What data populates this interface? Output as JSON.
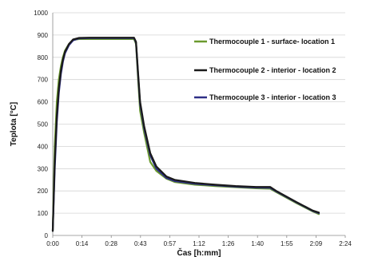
{
  "chart_data": {
    "type": "line",
    "title": "",
    "xlabel": "Čas [h:mm]",
    "ylabel": "Teplota [°C]",
    "ylim": [
      0,
      1000
    ],
    "xlim_minutes": [
      0,
      144
    ],
    "yticks": [
      "0",
      "100",
      "200",
      "300",
      "400",
      "500",
      "600",
      "700",
      "800",
      "900",
      "1000"
    ],
    "xticks": [
      "0:00",
      "0:14",
      "0:28",
      "0:43",
      "0:57",
      "1:12",
      "1:26",
      "1:40",
      "1:55",
      "2:09",
      "2:24"
    ],
    "grid": "horizontal",
    "legend_position": "right",
    "series": [
      {
        "name": "Thermocouple 1 - surface- location 1",
        "color": "#6b9a2e",
        "x_minutes": [
          0,
          1,
          2,
          3,
          4,
          5,
          6,
          8,
          10,
          13,
          18,
          25,
          35,
          40,
          41,
          42,
          43,
          45,
          48,
          51,
          56,
          60,
          70,
          80,
          90,
          100,
          107,
          110,
          120,
          128,
          131
        ],
        "values": [
          20,
          400,
          600,
          700,
          760,
          800,
          830,
          860,
          878,
          882,
          882,
          882,
          882,
          882,
          860,
          700,
          560,
          460,
          330,
          290,
          255,
          240,
          228,
          222,
          217,
          212,
          210,
          195,
          145,
          108,
          96
        ]
      },
      {
        "name": "Thermocouple 2 - interior - location 2",
        "color": "#1a1a1a",
        "x_minutes": [
          0,
          1,
          2,
          3,
          4,
          5,
          6,
          8,
          10,
          13,
          18,
          25,
          35,
          40,
          41,
          42,
          43,
          45,
          48,
          51,
          56,
          60,
          70,
          80,
          90,
          100,
          107,
          110,
          120,
          128,
          131
        ],
        "values": [
          20,
          330,
          540,
          660,
          740,
          790,
          825,
          860,
          880,
          887,
          888,
          888,
          888,
          888,
          870,
          730,
          600,
          490,
          370,
          310,
          265,
          250,
          236,
          228,
          222,
          218,
          218,
          200,
          150,
          112,
          103
        ]
      },
      {
        "name": "Thermocouple 3 - interior - location 3",
        "color": "#2e2f86",
        "x_minutes": [
          0,
          1,
          2,
          3,
          4,
          5,
          6,
          8,
          10,
          13,
          18,
          25,
          35,
          40,
          41,
          42,
          43,
          45,
          48,
          51,
          56,
          60,
          70,
          80,
          90,
          100,
          107,
          110,
          120,
          128,
          131
        ],
        "values": [
          20,
          300,
          510,
          640,
          725,
          780,
          818,
          855,
          876,
          885,
          886,
          886,
          886,
          886,
          866,
          720,
          590,
          480,
          360,
          300,
          258,
          244,
          232,
          225,
          219,
          215,
          214,
          198,
          148,
          110,
          100
        ]
      }
    ]
  }
}
